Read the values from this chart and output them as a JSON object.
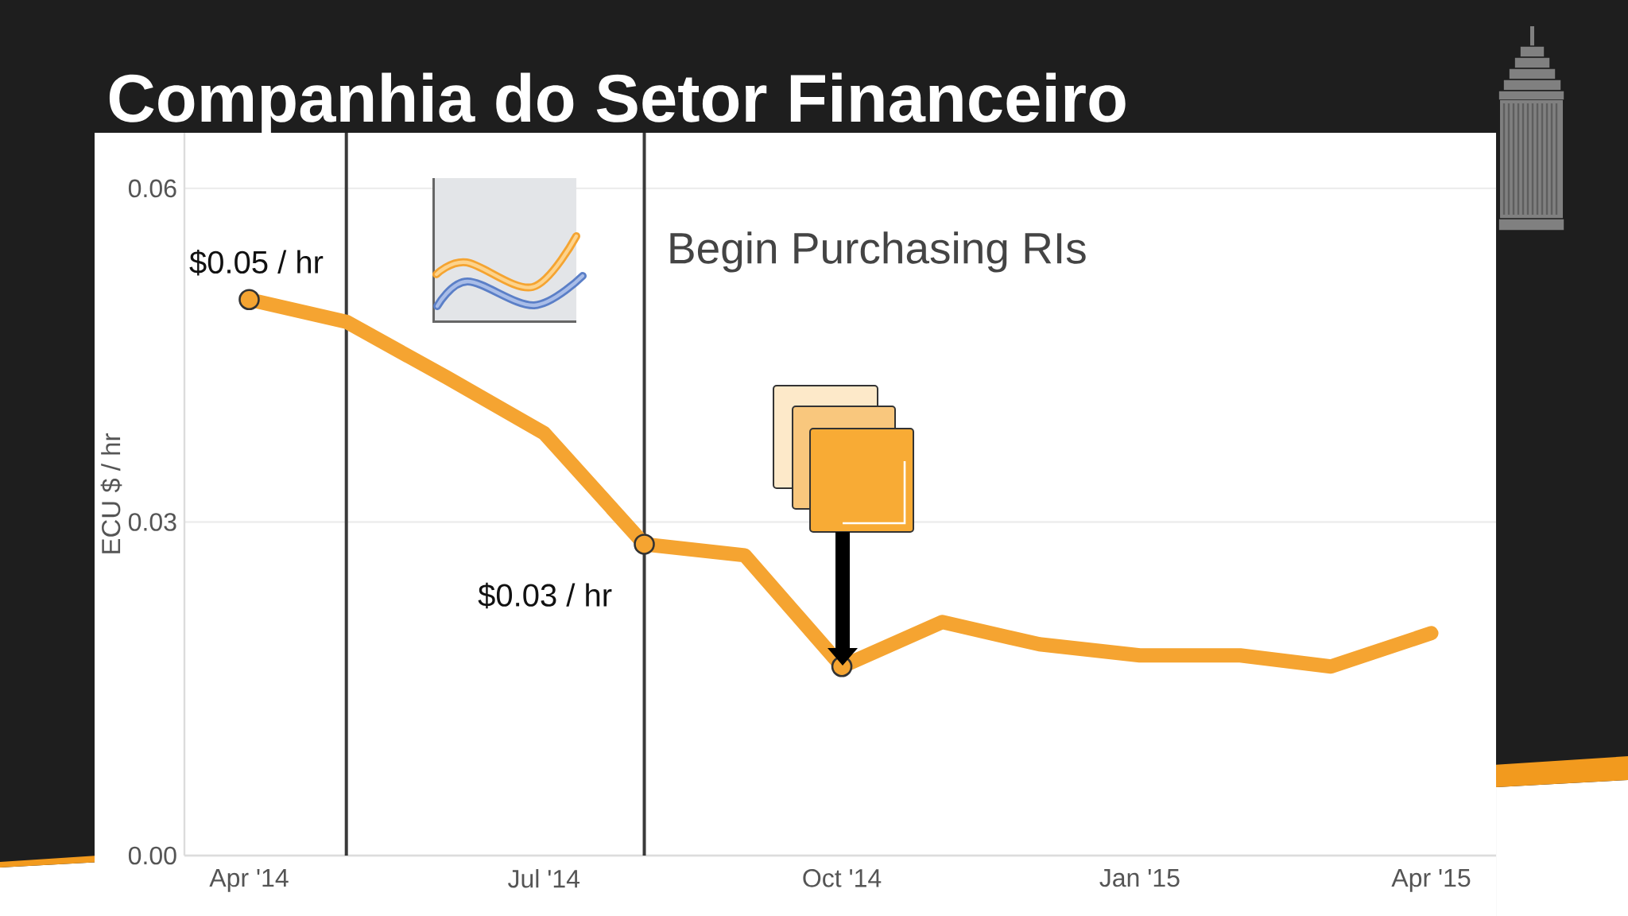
{
  "chart_data": {
    "type": "line",
    "title": "Companhia do Setor Financeiro",
    "ylabel": "ECU $ / hr",
    "x": [
      "2014-04-01",
      "2014-05-01",
      "2014-06-01",
      "2014-07-01",
      "2014-08-01",
      "2014-09-01",
      "2014-10-01",
      "2014-11-01",
      "2014-12-01",
      "2015-01-01",
      "2015-02-01",
      "2015-03-01",
      "2015-04-01"
    ],
    "series": [
      {
        "color": "#f5a431",
        "values": [
          0.05,
          0.048,
          0.043,
          0.038,
          0.028,
          0.027,
          0.017,
          0.021,
          0.019,
          0.018,
          0.018,
          0.017,
          0.02
        ]
      },
      {
        "type": "scatter",
        "color": "#f5a431",
        "marker": "circle",
        "x": [
          "2014-04-01",
          "2014-08-01",
          "2014-10-01"
        ],
        "values": [
          0.05,
          0.028,
          0.017
        ]
      }
    ],
    "xlim": [
      "2014-03-12",
      "2015-04-21"
    ],
    "xticks": [
      {
        "value": "2014-04-01",
        "label": "Apr '14"
      },
      {
        "value": "2014-07-01",
        "label": "Jul '14"
      },
      {
        "value": "2014-10-01",
        "label": "Oct '14"
      },
      {
        "value": "2015-01-01",
        "label": "Jan '15"
      },
      {
        "value": "2015-04-01",
        "label": "Apr '15"
      }
    ],
    "ylim": [
      0,
      0.065
    ],
    "yticks": [
      {
        "value": 0,
        "label": "0.00"
      },
      0.03,
      0.06
    ],
    "grid": "y",
    "ref_lines": [
      {
        "axis": "x",
        "value": "2014-05-01",
        "color": "#3a3a3a"
      },
      {
        "axis": "x",
        "value": "2014-08-01",
        "label": "Begin Purchasing RIs",
        "color": "#3a3a3a"
      }
    ],
    "annotations": [
      {
        "text": "$0.05 / hr",
        "x": "2014-04-01",
        "y": 0.05
      },
      {
        "text": "$0.03 / hr",
        "x": "2014-08-01",
        "y": 0.028
      }
    ]
  }
}
